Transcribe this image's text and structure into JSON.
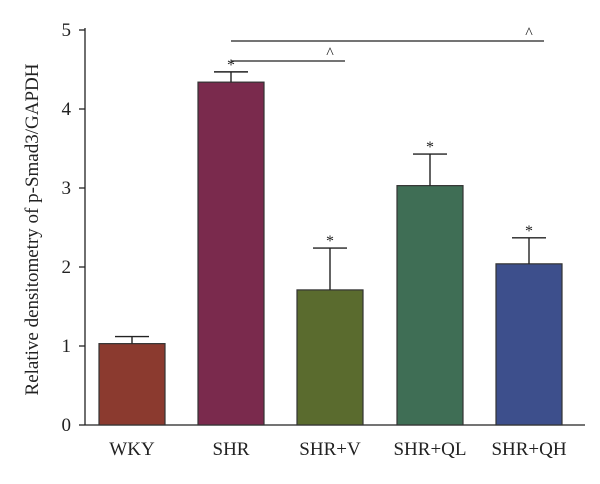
{
  "chart_data": {
    "type": "bar",
    "title": "",
    "xlabel": "",
    "ylabel": "Relative densitometry of p-Smad3/GAPDH",
    "ylim": [
      0,
      5
    ],
    "yticks": [
      0,
      1,
      2,
      3,
      4,
      5
    ],
    "categories": [
      "WKY",
      "SHR",
      "SHR+V",
      "SHR+QL",
      "SHR+QH"
    ],
    "values": [
      1.03,
      4.34,
      1.71,
      3.03,
      2.04
    ],
    "errors": [
      0.09,
      0.13,
      0.53,
      0.4,
      0.33
    ],
    "colors": [
      "#8b3a2f",
      "#7a2a4d",
      "#5a6b2e",
      "#3f6e55",
      "#3d4f8c"
    ],
    "significance_marks": [
      "",
      "*",
      "*",
      "*",
      "*"
    ],
    "comparisons": [
      {
        "from": "SHR",
        "to": "SHR+V",
        "label": "^"
      },
      {
        "from": "SHR",
        "to": "SHR+QH",
        "label": "^"
      }
    ],
    "grid": false
  }
}
